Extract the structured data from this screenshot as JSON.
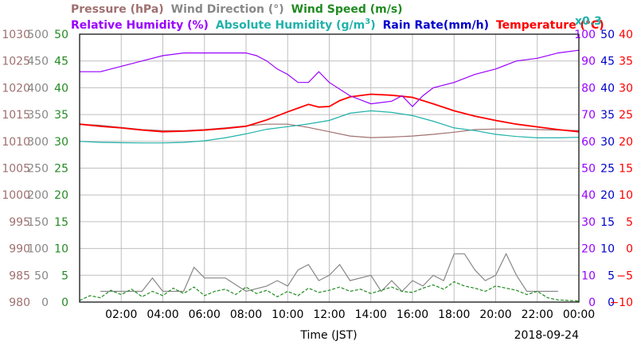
{
  "chart_data": {
    "type": "line",
    "legend": {
      "row1": [
        {
          "name": "Pressure (hPa)",
          "color": "#a07070"
        },
        {
          "name": "Wind Direction (°)",
          "color": "#888888"
        },
        {
          "name": "Wind Speed (m/s)",
          "color": "#228b22"
        }
      ],
      "row2": [
        {
          "name": "Relative Humidity (%)",
          "color": "#9900ff"
        },
        {
          "name": "Absolute Humidity (g/m",
          "sup": "3",
          "close": ")",
          "color": "#20b2aa"
        },
        {
          "name": "Rain Rate(mm/h)",
          "color": "#0000cc"
        },
        {
          "name": "Temperature (°C)",
          "color": "#ff0000"
        }
      ],
      "multiplier": "x0.3"
    },
    "xlabel": "Time (JST)",
    "date": "2018-09-24",
    "x_ticks": [
      "02:00",
      "04:00",
      "06:00",
      "08:00",
      "10:00",
      "12:00",
      "14:00",
      "16:00",
      "18:00",
      "20:00",
      "22:00",
      "00:00"
    ],
    "x_range_hours": [
      0,
      24
    ],
    "axes": {
      "pressure": {
        "ticks": [
          "1030",
          "1025",
          "1020",
          "1015",
          "1010",
          "1005",
          "1000",
          "995",
          "990",
          "985",
          "980"
        ],
        "range": [
          980,
          1030
        ],
        "color": "#a07070"
      },
      "wind_direction": {
        "ticks": [
          "500",
          "450",
          "400",
          "350",
          "300",
          "250",
          "200",
          "150",
          "100",
          "50",
          "0"
        ],
        "range": [
          0,
          500
        ],
        "color": "#888888"
      },
      "wind_speed": {
        "ticks": [
          "50",
          "45",
          "40",
          "35",
          "30",
          "25",
          "20",
          "15",
          "10",
          "5",
          "0"
        ],
        "range": [
          0,
          50
        ],
        "color": "#228b22"
      },
      "relative_humidity": {
        "ticks": [
          "100",
          "90",
          "80",
          "70",
          "60",
          "50",
          "40",
          "30",
          "20",
          "10",
          "0"
        ],
        "range": [
          0,
          100
        ],
        "color": "#9900ff"
      },
      "rain_rate": {
        "ticks": [
          "50",
          "45",
          "40",
          "35",
          "30",
          "25",
          "20",
          "15",
          "10",
          "5",
          "0"
        ],
        "range": [
          0,
          50
        ],
        "color": "#0000cc"
      },
      "temperature": {
        "ticks": [
          "40",
          "35",
          "30",
          "25",
          "20",
          "15",
          "10",
          "5",
          "0",
          "−5",
          "−10"
        ],
        "range": [
          -10,
          40
        ],
        "color": "#ff0000"
      }
    },
    "series": [
      {
        "name": "Pressure (hPa)",
        "axis": "pressure",
        "color": "#a07070",
        "points": [
          [
            0,
            1013.2
          ],
          [
            1,
            1013
          ],
          [
            2,
            1012.6
          ],
          [
            3,
            1012.2
          ],
          [
            4,
            1012
          ],
          [
            5,
            1012
          ],
          [
            6,
            1012.2
          ],
          [
            7,
            1012.5
          ],
          [
            8,
            1012.9
          ],
          [
            9,
            1013.2
          ],
          [
            10,
            1013.2
          ],
          [
            11,
            1012.6
          ],
          [
            12,
            1011.8
          ],
          [
            13,
            1011
          ],
          [
            14,
            1010.7
          ],
          [
            15,
            1010.8
          ],
          [
            16,
            1011
          ],
          [
            17,
            1011.3
          ],
          [
            18,
            1011.7
          ],
          [
            19,
            1012.2
          ],
          [
            20,
            1012.3
          ],
          [
            21,
            1012.3
          ],
          [
            22,
            1012.2
          ],
          [
            23,
            1012.1
          ],
          [
            24,
            1012
          ]
        ]
      },
      {
        "name": "Temperature (°C)",
        "axis": "temperature",
        "color": "#ff0000",
        "points": [
          [
            0,
            23.2
          ],
          [
            1,
            22.8
          ],
          [
            2,
            22.5
          ],
          [
            3,
            22.1
          ],
          [
            4,
            21.8
          ],
          [
            5,
            21.9
          ],
          [
            6,
            22.1
          ],
          [
            7,
            22.4
          ],
          [
            8,
            22.8
          ],
          [
            9,
            24
          ],
          [
            10,
            25.5
          ],
          [
            11,
            26.9
          ],
          [
            11.5,
            26.4
          ],
          [
            12,
            26.5
          ],
          [
            12.5,
            27.6
          ],
          [
            13,
            28.3
          ],
          [
            14,
            28.8
          ],
          [
            15,
            28.6
          ],
          [
            16,
            28.2
          ],
          [
            17,
            27
          ],
          [
            18,
            25.7
          ],
          [
            19,
            24.7
          ],
          [
            20,
            23.9
          ],
          [
            21,
            23.2
          ],
          [
            22,
            22.7
          ],
          [
            23,
            22.2
          ],
          [
            24,
            21.8
          ]
        ]
      },
      {
        "name": "Relative Humidity (%)",
        "axis": "relative_humidity",
        "color": "#9900ff",
        "points": [
          [
            0,
            86
          ],
          [
            1,
            86
          ],
          [
            1.5,
            87
          ],
          [
            2,
            88
          ],
          [
            3,
            90
          ],
          [
            4,
            92
          ],
          [
            5,
            93
          ],
          [
            6,
            93
          ],
          [
            7,
            93
          ],
          [
            8,
            93
          ],
          [
            8.5,
            92
          ],
          [
            9,
            90
          ],
          [
            9.5,
            87
          ],
          [
            10,
            85
          ],
          [
            10.5,
            82
          ],
          [
            11,
            82
          ],
          [
            11.5,
            86
          ],
          [
            12,
            82
          ],
          [
            13,
            77
          ],
          [
            14,
            74
          ],
          [
            15,
            75
          ],
          [
            15.5,
            77
          ],
          [
            16,
            73
          ],
          [
            16.5,
            77
          ],
          [
            17,
            80
          ],
          [
            18,
            82
          ],
          [
            19,
            85
          ],
          [
            20,
            87
          ],
          [
            21,
            90
          ],
          [
            22,
            91
          ],
          [
            23,
            93
          ],
          [
            24,
            94
          ]
        ]
      },
      {
        "name": "Absolute Humidity (g/m3)",
        "axis": "relative_humidity",
        "color": "#20b2aa",
        "points": [
          [
            0,
            60
          ],
          [
            1,
            59.6
          ],
          [
            2,
            59.5
          ],
          [
            3,
            59.4
          ],
          [
            4,
            59.4
          ],
          [
            5,
            59.6
          ],
          [
            6,
            60.2
          ],
          [
            7,
            61.3
          ],
          [
            8,
            62.8
          ],
          [
            9,
            64.5
          ],
          [
            10,
            65.5
          ],
          [
            11,
            66.5
          ],
          [
            12,
            67.8
          ],
          [
            13,
            70.5
          ],
          [
            14,
            71.4
          ],
          [
            15,
            70.8
          ],
          [
            16,
            69.6
          ],
          [
            17,
            67.5
          ],
          [
            18,
            65
          ],
          [
            19,
            64
          ],
          [
            20,
            62.6
          ],
          [
            21,
            61.8
          ],
          [
            22,
            61.3
          ],
          [
            23,
            61.3
          ],
          [
            24,
            61.5
          ]
        ]
      },
      {
        "name": "Wind Direction (°)",
        "axis": "wind_direction",
        "color": "#888888",
        "points": [
          [
            1,
            20
          ],
          [
            2,
            20
          ],
          [
            3,
            20
          ],
          [
            3.5,
            45
          ],
          [
            4,
            20
          ],
          [
            5,
            20
          ],
          [
            5.5,
            65
          ],
          [
            6,
            45
          ],
          [
            7,
            45
          ],
          [
            8,
            20
          ],
          [
            9,
            30
          ],
          [
            9.5,
            40
          ],
          [
            10,
            30
          ],
          [
            10.5,
            60
          ],
          [
            11,
            70
          ],
          [
            11.5,
            40
          ],
          [
            12,
            50
          ],
          [
            12.5,
            70
          ],
          [
            13,
            40
          ],
          [
            14,
            50
          ],
          [
            14.5,
            20
          ],
          [
            15,
            40
          ],
          [
            15.5,
            20
          ],
          [
            16,
            40
          ],
          [
            16.5,
            30
          ],
          [
            17,
            50
          ],
          [
            17.5,
            40
          ],
          [
            18,
            90
          ],
          [
            18.5,
            90
          ],
          [
            19,
            60
          ],
          [
            19.5,
            40
          ],
          [
            20,
            50
          ],
          [
            20.5,
            90
          ],
          [
            21,
            50
          ],
          [
            21.5,
            20
          ],
          [
            22,
            20
          ],
          [
            23,
            20
          ]
        ]
      },
      {
        "name": "Wind Speed (m/s)",
        "axis": "wind_speed",
        "color": "#228b22",
        "points": [
          [
            0,
            0.3
          ],
          [
            0.5,
            1.2
          ],
          [
            1,
            0.8
          ],
          [
            1.5,
            2.2
          ],
          [
            2,
            1.4
          ],
          [
            2.5,
            2.4
          ],
          [
            3,
            1
          ],
          [
            3.5,
            2
          ],
          [
            4,
            1.2
          ],
          [
            4.5,
            2.6
          ],
          [
            5,
            1.6
          ],
          [
            5.5,
            2.8
          ],
          [
            6,
            1.2
          ],
          [
            6.5,
            2
          ],
          [
            7,
            2.4
          ],
          [
            7.5,
            1.4
          ],
          [
            8,
            2.8
          ],
          [
            8.5,
            1.6
          ],
          [
            9,
            2.2
          ],
          [
            9.5,
            1
          ],
          [
            10,
            2
          ],
          [
            10.5,
            1.2
          ],
          [
            11,
            2.6
          ],
          [
            11.5,
            1.8
          ],
          [
            12,
            2.2
          ],
          [
            12.5,
            2.8
          ],
          [
            13,
            2
          ],
          [
            13.5,
            2.4
          ],
          [
            14,
            1.6
          ],
          [
            14.5,
            2.2
          ],
          [
            15,
            2.8
          ],
          [
            15.5,
            2
          ],
          [
            16,
            1.8
          ],
          [
            16.5,
            2.6
          ],
          [
            17,
            3.2
          ],
          [
            17.5,
            2.4
          ],
          [
            18,
            3.8
          ],
          [
            18.5,
            3
          ],
          [
            19,
            2.6
          ],
          [
            19.5,
            2
          ],
          [
            20,
            3
          ],
          [
            20.5,
            2.6
          ],
          [
            21,
            2.2
          ],
          [
            21.5,
            1.4
          ],
          [
            22,
            2
          ],
          [
            22.5,
            0.8
          ],
          [
            23,
            0.4
          ],
          [
            24,
            0.2
          ]
        ]
      }
    ]
  }
}
